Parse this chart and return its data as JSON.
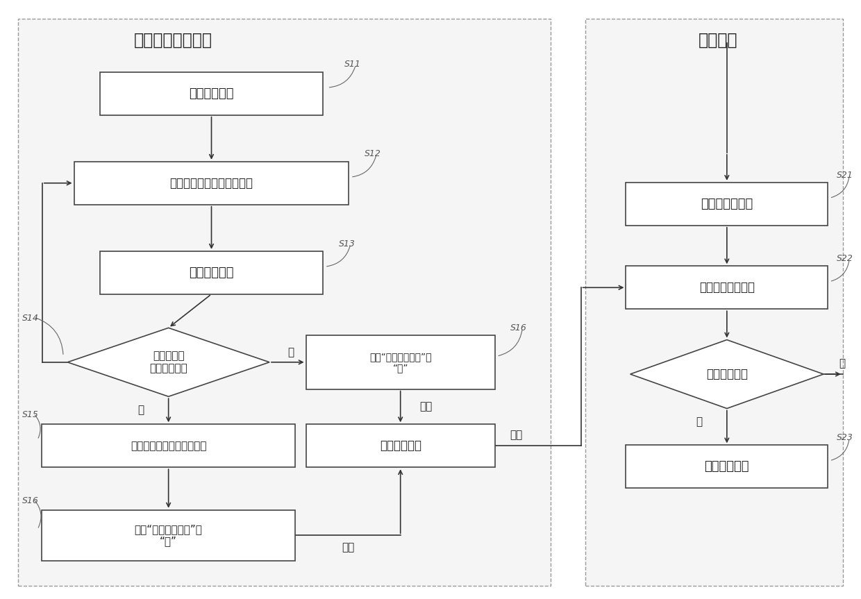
{
  "title_left": "逻辑控制定时任务",
  "title_right": "定时任务",
  "bg_color": "#ffffff",
  "text_color": "#222222",
  "s11_label": "生成节点编号",
  "s12_label": "启动凭证申请和续期定时器",
  "s13_label": "申请获取凭证",
  "s14_label": "凭证是否被\n其他节点申请",
  "s15_label": "生成分布式缓存数据的凭证",
  "s16a_label": "更新“持有凭证标记”为\n“否”",
  "s16b_label": "更新“持有凭证标记”为\n“是”",
  "sflag_label": "是否持有标记",
  "s21_label": "启动任务定时器",
  "s22_label": "判断是否持有凭证",
  "sd_label": "持有凭证标记",
  "s23_label": "执行定时任务",
  "yes_label": "是",
  "no_label": "否",
  "update_label": "更新",
  "read_label": "读取"
}
